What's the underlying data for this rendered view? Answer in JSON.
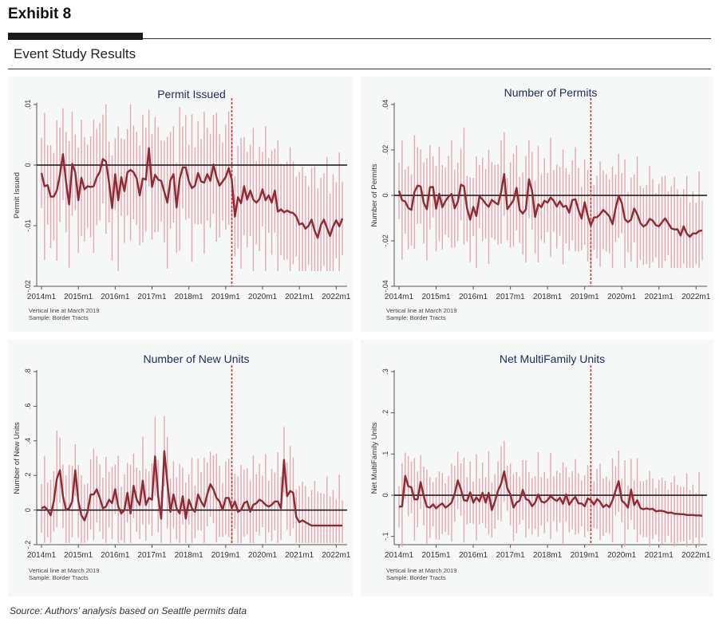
{
  "exhibit": {
    "label": "Exhibit 8",
    "subtitle": "Event Study Results"
  },
  "source": "Source: Authors’ analysis based on Seattle permits data",
  "colors": {
    "line": "#8e2a33",
    "ci": "#e3a9b0",
    "event_line": "#e0302c",
    "panel_bg": "#f6f7f7",
    "title": "#1e2a5a"
  },
  "chart_data": [
    {
      "type": "line",
      "title": "Permit Issued",
      "ylabel": "Permit Issued",
      "ylim": [
        -0.02,
        0.01
      ],
      "yticks": [
        0.01,
        0,
        -0.01,
        -0.02
      ],
      "ytick_labels": [
        ".01",
        "0",
        "-.01",
        "-.02"
      ],
      "x_tick_labels": [
        "2014m1",
        "2015m1",
        "2016m1",
        "2017m1",
        "2018m1",
        "2019m1",
        "2020m1",
        "2021m1",
        "2022m1"
      ],
      "x_start": "2014m1",
      "event_at": "2019m3",
      "notes": [
        "Vertical line at March 2019",
        "Sample: Border Tracts"
      ],
      "series": [
        {
          "values": [
            -0.0013,
            -0.0035,
            -0.0033,
            -0.0052,
            -0.0052,
            -0.0042,
            -0.0016,
            0.0018,
            -0.0028,
            -0.0065,
            0.0002,
            -0.0012,
            -0.0058,
            -0.0021,
            -0.004,
            -0.0035,
            -0.0036,
            -0.0035,
            -0.002,
            -0.0011,
            0.001,
            0.0006,
            -0.0028,
            -0.0071,
            -0.0015,
            -0.0058,
            -0.002,
            -0.0043,
            -0.0012,
            -0.0008,
            -0.0012,
            -0.0022,
            -0.005,
            -0.0022,
            -0.0024,
            0.0028,
            -0.0036,
            -0.0016,
            -0.0024,
            -0.0026,
            -0.0044,
            -0.0062,
            -0.0025,
            -0.0015,
            -0.007,
            -0.0023,
            -0.0004,
            -0.0004,
            -0.0027,
            -0.0038,
            -0.0034,
            -0.0013,
            -0.0027,
            -0.0029,
            -0.0015,
            -0.0026,
            0.0001,
            -0.002,
            -0.0034,
            -0.0027,
            -0.002,
            -0.0005,
            -0.0025,
            -0.0085,
            -0.0053,
            -0.0063,
            -0.0035,
            -0.0057,
            -0.0042,
            -0.0057,
            -0.0062,
            -0.0056,
            -0.004,
            -0.0058,
            -0.005,
            -0.0062,
            -0.0042,
            -0.0077,
            -0.0073,
            -0.0078,
            -0.0075,
            -0.0078,
            -0.0079,
            -0.0085,
            -0.0098,
            -0.0096,
            -0.0105,
            -0.01,
            -0.009,
            -0.0109,
            -0.012,
            -0.0099,
            -0.009,
            -0.0104,
            -0.0117,
            -0.0101,
            -0.0091,
            -0.0101,
            -0.0088
          ]
        }
      ]
    },
    {
      "type": "line",
      "title": "Number of Permits",
      "ylabel": "Number of Permits",
      "ylim": [
        -0.04,
        0.04
      ],
      "yticks": [
        0.04,
        0.02,
        0,
        -0.02,
        -0.04
      ],
      "ytick_labels": [
        ".04",
        ".02",
        "0",
        "-.02",
        "-.04"
      ],
      "x_tick_labels": [
        "2014m1",
        "2015m1",
        "2016m1",
        "2017m1",
        "2018m1",
        "2019m1",
        "2020m1",
        "2021m1",
        "2022m1"
      ],
      "x_start": "2014m1",
      "event_at": "2019m3",
      "notes": [
        "Vertical line at March 2019",
        "Sample: Border Tracts"
      ],
      "series": [
        {
          "values": [
            0.002,
            -0.0021,
            -0.0027,
            -0.0055,
            -0.0064,
            0.0015,
            0.0043,
            0.0039,
            -0.0033,
            -0.0061,
            0.0036,
            0.0037,
            -0.0059,
            0.0007,
            -0.0052,
            -0.0025,
            -0.0006,
            0.0006,
            -0.0057,
            -0.0028,
            0.0047,
            0.004,
            -0.0058,
            -0.0107,
            -0.0051,
            -0.0091,
            -0.0005,
            -0.0018,
            -0.0037,
            -0.005,
            -0.002,
            -0.0031,
            -0.004,
            0.0015,
            0.0094,
            -0.006,
            -0.0042,
            -0.0021,
            0.0033,
            -0.0064,
            -0.008,
            -0.0061,
            0.0071,
            0.002,
            -0.0095,
            -0.0039,
            -0.0052,
            -0.0023,
            -0.0032,
            -0.0009,
            -0.0024,
            -0.0049,
            -0.0026,
            -0.005,
            -0.0046,
            -0.0076,
            -0.0021,
            -0.0017,
            -0.0064,
            -0.0102,
            -0.003,
            -0.0089,
            -0.0132,
            -0.0097,
            -0.0096,
            -0.0083,
            -0.0064,
            -0.0077,
            -0.0093,
            -0.0127,
            -0.0057,
            -0.0002,
            -0.0034,
            -0.0105,
            -0.0118,
            -0.0107,
            -0.0058,
            -0.0083,
            -0.0121,
            -0.0137,
            -0.0128,
            -0.0103,
            -0.0111,
            -0.0131,
            -0.0136,
            -0.0118,
            -0.0101,
            -0.0122,
            -0.0145,
            -0.015,
            -0.0149,
            -0.0177,
            -0.0136,
            -0.0168,
            -0.0182,
            -0.0167,
            -0.0168,
            -0.0157,
            -0.0154
          ]
        }
      ]
    },
    {
      "type": "line",
      "title": "Number of New Units",
      "ylabel": "Number of New Units",
      "ylim": [
        -0.2,
        0.8
      ],
      "yticks": [
        0.8,
        0.6,
        0.4,
        0.2,
        0,
        -0.2
      ],
      "ytick_labels": [
        ".8",
        ".6",
        ".4",
        ".2",
        "0",
        "-.2"
      ],
      "x_tick_labels": [
        "2014m1",
        "2015m1",
        "2016m1",
        "2017m1",
        "2018m1",
        "2019m1",
        "2020m1",
        "2021m1",
        "2022m1"
      ],
      "x_start": "2014m1",
      "event_at": "2019m3",
      "notes": [
        "Vertical line at March 2019",
        "Sample: Border Tracts"
      ],
      "series": [
        {
          "values": [
            0.01,
            0.02,
            0.0,
            -0.03,
            0.05,
            0.18,
            0.23,
            0.08,
            0.0,
            0.01,
            0.05,
            0.23,
            0.05,
            -0.03,
            -0.06,
            -0.01,
            0.09,
            0.09,
            0.12,
            0.07,
            0.01,
            0.02,
            0.06,
            0.04,
            0.12,
            0.02,
            -0.02,
            0.0,
            0.1,
            -0.02,
            0.14,
            0.06,
            0.03,
            0.17,
            0.03,
            0.07,
            0.06,
            0.31,
            0.08,
            -0.05,
            0.34,
            0.16,
            -0.01,
            0.09,
            0.01,
            -0.02,
            0.08,
            -0.05,
            0.06,
            0.01,
            -0.01,
            0.09,
            0.05,
            0.02,
            0.09,
            0.15,
            0.12,
            0.07,
            0.05,
            0.0,
            0.07,
            0.07,
            0.01,
            0.05,
            -0.01,
            0.0,
            0.04,
            0.05,
            -0.01,
            0.03,
            0.04,
            0.06,
            0.05,
            0.03,
            0.02,
            0.03,
            0.05,
            0.05,
            0.01,
            0.29,
            0.08,
            0.11,
            0.1,
            -0.04,
            -0.07,
            -0.06,
            -0.07,
            -0.08,
            -0.09,
            -0.09,
            -0.09,
            -0.09,
            -0.09,
            -0.09,
            -0.09,
            -0.09,
            -0.09,
            -0.09,
            -0.09
          ]
        }
      ]
    },
    {
      "type": "line",
      "title": "Net MultiFamily Units",
      "ylabel": "Net MultiFamily Units",
      "ylim": [
        -0.12,
        0.3
      ],
      "yticks": [
        0.3,
        0.2,
        0.1,
        0,
        -0.1
      ],
      "ytick_labels": [
        ".3",
        ".2",
        ".1",
        "0",
        "-.1"
      ],
      "x_tick_labels": [
        "2014m1",
        "2015m1",
        "2016m1",
        "2017m1",
        "2018m1",
        "2019m1",
        "2020m1",
        "2021m1",
        "2022m1"
      ],
      "x_start": "2014m1",
      "event_at": "2019m3",
      "notes": [
        "Vertical line at March 2019",
        "Sample: Border Tracts"
      ],
      "series": [
        {
          "values": [
            -0.028,
            -0.027,
            0.047,
            0.022,
            0.019,
            -0.01,
            -0.01,
            0.032,
            -0.002,
            -0.028,
            -0.03,
            -0.022,
            -0.032,
            -0.025,
            -0.02,
            -0.03,
            -0.025,
            -0.018,
            0.004,
            0.036,
            0.014,
            -0.012,
            -0.014,
            0.007,
            -0.018,
            -0.005,
            -0.015,
            0.006,
            -0.018,
            0.006,
            -0.036,
            -0.015,
            0.011,
            0.028,
            0.058,
            0.017,
            0.002,
            -0.03,
            -0.018,
            -0.013,
            0.013,
            -0.009,
            -0.013,
            -0.027,
            -0.018,
            0.002,
            -0.015,
            -0.018,
            -0.012,
            -0.002,
            -0.009,
            -0.014,
            -0.006,
            -0.021,
            0.002,
            -0.023,
            -0.012,
            -0.004,
            -0.02,
            -0.02,
            -0.027,
            -0.008,
            -0.012,
            -0.023,
            -0.009,
            -0.016,
            -0.029,
            -0.023,
            -0.029,
            -0.012,
            0.011,
            0.034,
            -0.013,
            -0.02,
            -0.03,
            0.014,
            -0.024,
            -0.012,
            -0.031,
            -0.034,
            -0.032,
            -0.034,
            -0.033,
            -0.039,
            -0.038,
            -0.038,
            -0.04,
            -0.043,
            -0.042,
            -0.045,
            -0.045,
            -0.046,
            -0.046,
            -0.048,
            -0.048,
            -0.048,
            -0.049,
            -0.049,
            -0.05
          ]
        }
      ]
    }
  ]
}
